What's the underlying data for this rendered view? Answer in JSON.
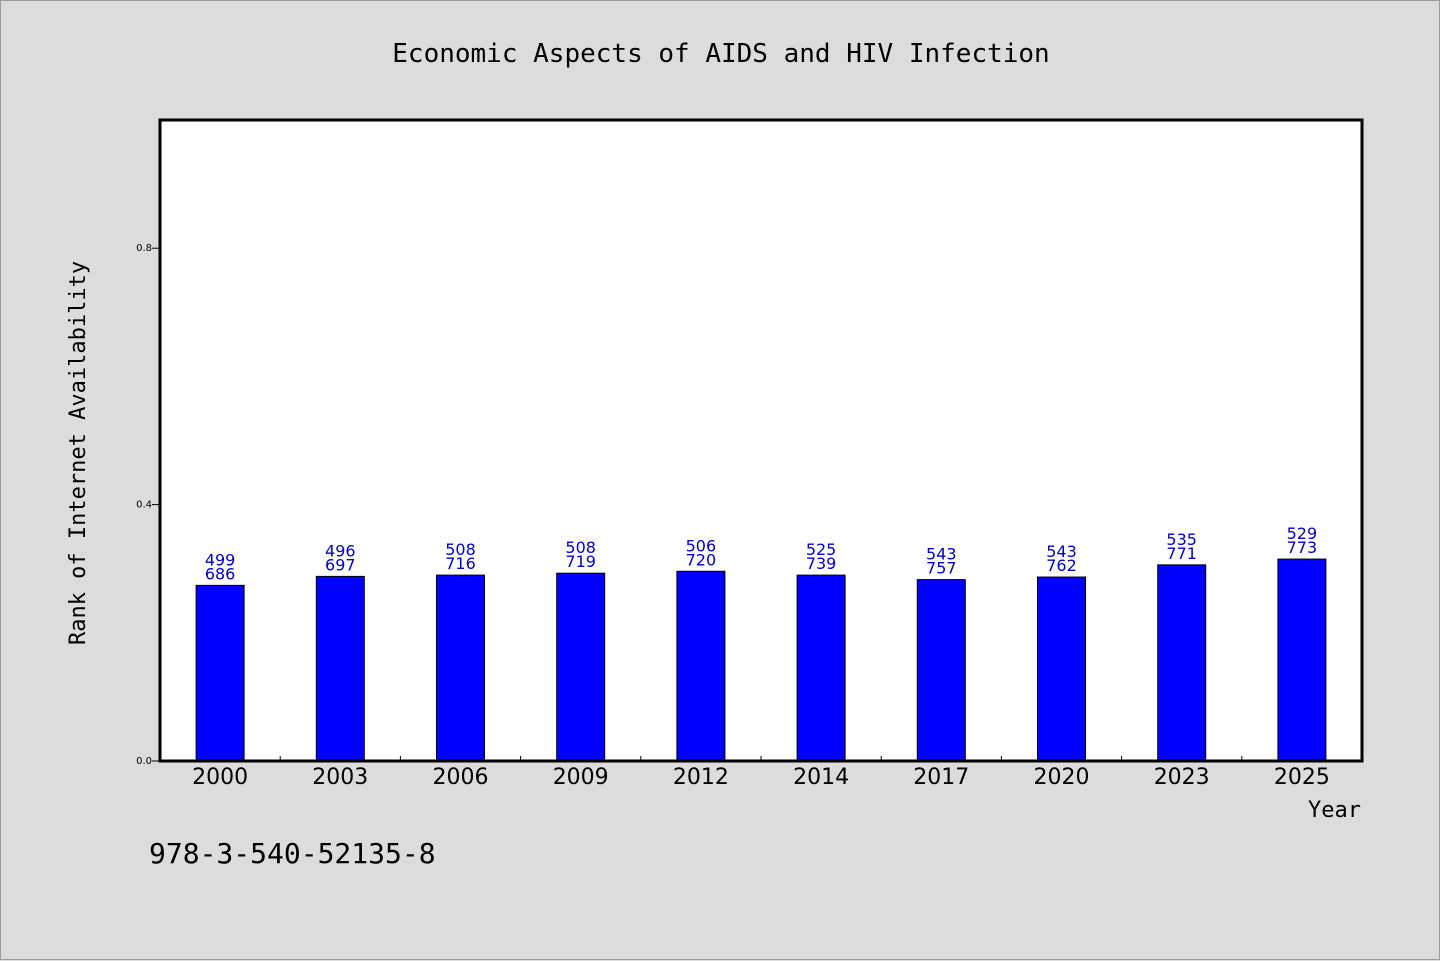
{
  "chart_data": {
    "type": "bar",
    "title": "Economic Aspects of AIDS and HIV Infection",
    "xlabel": "Year",
    "ylabel": "Rank of Internet Availability",
    "ylim": [
      0,
      1.0
    ],
    "yticks": [
      "0.0",
      "0.4",
      "0.8"
    ],
    "ytick_values": [
      0.0,
      0.4,
      0.8
    ],
    "categories": [
      "2000",
      "2003",
      "2006",
      "2009",
      "2012",
      "2014",
      "2017",
      "2020",
      "2023",
      "2025"
    ],
    "values": [
      0.274,
      0.288,
      0.29,
      0.293,
      0.296,
      0.29,
      0.283,
      0.287,
      0.306,
      0.315
    ],
    "labels_top": [
      "499",
      "496",
      "508",
      "508",
      "506",
      "525",
      "543",
      "543",
      "535",
      "529"
    ],
    "labels_bottom": [
      "686",
      "697",
      "716",
      "719",
      "720",
      "739",
      "757",
      "762",
      "771",
      "773"
    ],
    "bar_color": "#0000ff",
    "grid": false
  },
  "footnote": "978-3-540-52135-8"
}
